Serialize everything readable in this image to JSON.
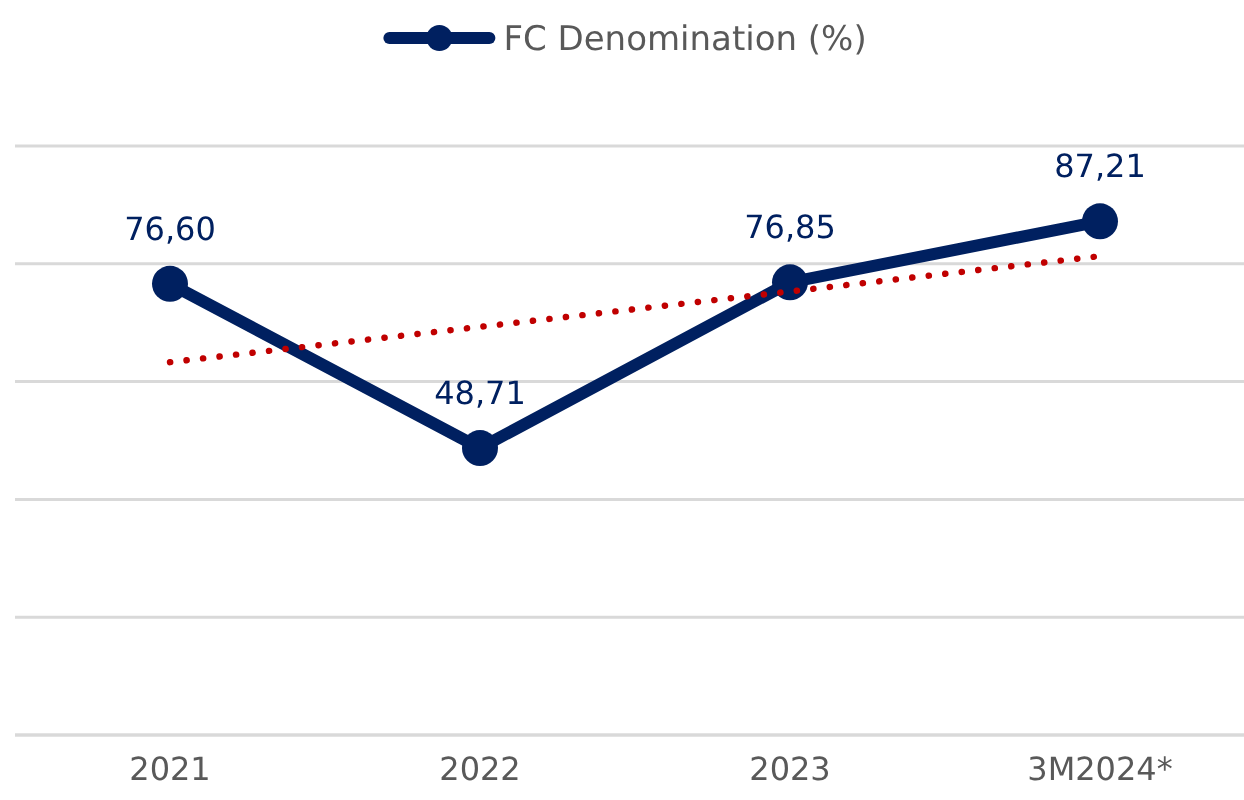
{
  "chart_data": {
    "type": "line",
    "categories": [
      "2021",
      "2022",
      "2023",
      "3M2024*"
    ],
    "ylim": [
      0,
      100
    ],
    "yticks": [
      {
        "value": 0,
        "label": null
      },
      {
        "value": 20,
        "label": null
      },
      {
        "value": 40,
        "label": null
      },
      {
        "value": 60,
        "label": null
      },
      {
        "value": 80,
        "label": null
      },
      {
        "value": 100,
        "label": null
      }
    ],
    "tick_labels": "x",
    "grid": "y",
    "legend": "top",
    "marker": "circle",
    "line_style": "solid",
    "series": [
      {
        "name": "FC Denomination (%)",
        "color": "#002060",
        "values": [
          76.6,
          48.71,
          76.85,
          87.21
        ],
        "value_labels": [
          "76,60",
          "48,71",
          "76,85",
          "87,21"
        ]
      },
      {
        "type": "line",
        "color": "#c00000",
        "values": [
          63.3,
          69.3,
          75.3,
          81.3
        ],
        "line_style": "dotted",
        "marker": "none"
      }
    ]
  }
}
